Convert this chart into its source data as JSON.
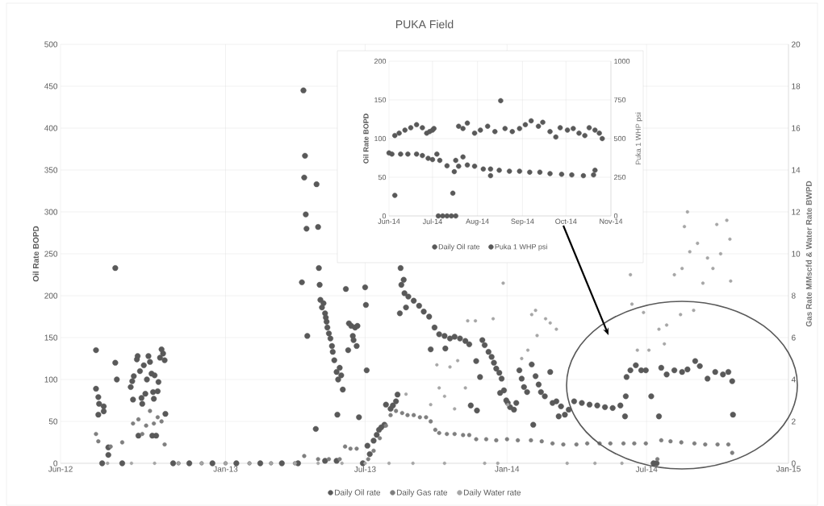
{
  "chart_data": [
    {
      "type": "scatter",
      "title": "PUKA Field",
      "ylabel": "Oil Rate BOPD",
      "y2label": "Gas Rate MMscfd & Water Rate BWPD",
      "xlim": [
        "2012-06-01",
        "2015-01-01"
      ],
      "xticks": [
        {
          "value": "2012-06-01",
          "label": "Jun-12"
        },
        {
          "value": "2013-01-01",
          "label": "Jan-13"
        },
        {
          "value": "2013-07-01",
          "label": "Jul-13"
        },
        {
          "value": "2014-01-01",
          "label": "Jan-14"
        },
        {
          "value": "2014-07-01",
          "label": "Jul-14"
        },
        {
          "value": "2015-01-01",
          "label": "Jan-15"
        }
      ],
      "ylim": [
        0,
        500
      ],
      "yticks": [
        0,
        50,
        100,
        150,
        200,
        250,
        300,
        350,
        400,
        450,
        500
      ],
      "y2lim": [
        0,
        20
      ],
      "y2ticks": [
        0,
        2,
        4,
        6,
        8,
        10,
        12,
        14,
        16,
        18,
        20
      ],
      "grid": true,
      "legend": "bottom",
      "marker": "circle",
      "series": [
        {
          "name": "Daily Oil rate",
          "color": "#595959",
          "x": [
            "2012-07-17",
            "2012-07-17",
            "2012-07-20",
            "2012-07-20",
            "2012-07-21",
            "2012-07-27",
            "2012-07-27",
            "2012-08-02",
            "2012-08-02",
            "2012-08-11",
            "2012-08-11",
            "2012-08-13",
            "2012-08-31",
            "2012-09-02",
            "2012-09-03",
            "2012-09-04",
            "2012-09-08",
            "2012-09-09",
            "2012-09-10",
            "2012-09-12",
            "2012-09-14",
            "2012-09-15",
            "2012-09-17",
            "2012-09-19",
            "2012-09-21",
            "2012-09-23",
            "2012-09-25",
            "2012-09-27",
            "2012-09-28",
            "2012-09-29",
            "2012-09-30",
            "2012-10-01",
            "2012-10-03",
            "2012-10-05",
            "2012-10-06",
            "2012-10-08",
            "2012-10-10",
            "2012-10-12",
            "2012-10-14",
            "2012-10-15",
            "2012-07-25",
            "2012-08-20",
            "2012-10-25",
            "2012-11-15",
            "2012-12-15",
            "2013-01-15",
            "2013-02-15",
            "2013-03-15",
            "2013-04-05",
            "2013-04-10",
            "2013-04-12",
            "2013-04-13",
            "2013-04-14",
            "2013-04-15",
            "2013-04-16",
            "2013-04-17",
            "2013-04-28",
            "2013-04-29",
            "2013-05-01",
            "2013-05-02",
            "2013-05-03",
            "2013-05-04",
            "2013-05-06",
            "2013-05-08",
            "2013-05-10",
            "2013-05-11",
            "2013-05-12",
            "2013-05-13",
            "2013-05-15",
            "2013-05-17",
            "2013-05-19",
            "2013-05-20",
            "2013-05-22",
            "2013-05-25",
            "2013-05-26",
            "2013-05-27",
            "2013-05-29",
            "2013-05-31",
            "2013-06-02",
            "2013-06-06",
            "2013-06-09",
            "2013-06-10",
            "2013-06-13",
            "2013-06-15",
            "2013-06-16",
            "2013-06-18",
            "2013-06-20",
            "2013-06-21",
            "2013-06-23",
            "2013-05-10",
            "2013-05-25",
            "2013-06-28",
            "2013-07-01",
            "2013-07-02",
            "2013-07-03",
            "2013-07-04",
            "2013-07-07",
            "2013-07-12",
            "2013-07-16",
            "2013-07-19",
            "2013-07-22",
            "2013-07-26",
            "2013-07-28",
            "2013-08-03",
            "2013-08-06",
            "2013-08-10",
            "2013-08-12",
            "2013-08-15",
            "2013-08-16",
            "2013-08-17",
            "2013-08-20",
            "2013-08-21",
            "2013-08-23",
            "2013-08-26",
            "2013-09-02",
            "2013-09-09",
            "2013-09-15",
            "2013-09-22",
            "2013-09-24",
            "2013-09-29",
            "2013-10-05",
            "2013-10-12",
            "2013-10-13",
            "2013-10-19",
            "2013-10-25",
            "2013-11-01",
            "2013-11-08",
            "2013-11-13",
            "2013-11-15",
            "2013-11-22",
            "2013-11-23",
            "2013-11-27",
            "2013-11-30",
            "2013-12-03",
            "2013-12-08",
            "2013-12-12",
            "2013-12-15",
            "2013-12-18",
            "2013-12-22",
            "2013-12-23",
            "2013-12-25",
            "2013-12-28",
            "2013-12-31",
            "2014-01-02",
            "2014-01-05",
            "2014-01-10",
            "2014-01-13",
            "2014-01-17",
            "2014-01-20",
            "2014-01-23",
            "2014-01-27",
            "2014-02-02",
            "2014-02-04",
            "2014-02-07",
            "2014-02-11",
            "2014-02-14",
            "2014-02-19",
            "2014-02-26",
            "2014-03-01",
            "2014-03-06",
            "2014-03-09",
            "2014-03-12",
            "2014-03-17",
            "2014-03-22",
            "2014-03-29",
            "2014-04-08",
            "2014-04-18",
            "2014-04-28",
            "2014-05-08",
            "2014-05-18",
            "2014-05-28",
            "2014-06-03",
            "2014-06-04",
            "2014-06-05",
            "2014-06-10",
            "2014-06-17",
            "2014-06-24",
            "2014-06-30",
            "2014-07-07",
            "2014-07-10",
            "2014-07-14",
            "2014-07-17",
            "2014-07-20",
            "2014-07-27",
            "2014-08-06",
            "2014-08-16",
            "2014-08-23",
            "2014-09-02",
            "2014-09-08",
            "2014-09-18",
            "2014-09-28",
            "2014-10-08",
            "2014-10-15",
            "2014-10-20",
            "2014-10-21"
          ],
          "values": [
            135,
            89,
            79,
            58,
            71,
            68,
            62,
            19,
            10,
            233,
            120,
            100,
            91,
            98,
            76,
            104,
            124,
            128,
            33,
            110,
            78,
            71,
            117,
            83,
            100,
            128,
            121,
            107,
            33,
            85,
            77,
            105,
            33,
            86,
            97,
            126,
            136,
            131,
            123,
            59,
            0,
            0,
            0,
            0,
            0,
            0,
            0,
            0,
            0,
            216,
            445,
            341,
            367,
            297,
            280,
            152,
            41,
            333,
            282,
            233,
            213,
            195,
            186,
            191,
            179,
            174,
            169,
            162,
            155,
            149,
            140,
            133,
            123,
            109,
            58,
            100,
            114,
            105,
            88,
            208,
            135,
            167,
            164,
            152,
            147,
            162,
            140,
            164,
            55,
            3,
            3,
            0,
            210,
            189,
            111,
            21,
            11,
            27,
            34,
            40,
            43,
            46,
            70,
            65,
            69,
            74,
            82,
            179,
            233,
            213,
            219,
            203,
            186,
            199,
            194,
            188,
            181,
            175,
            136,
            162,
            154,
            152,
            137,
            149,
            151,
            149,
            146,
            142,
            69,
            122,
            63,
            103,
            147,
            141,
            133,
            127,
            120,
            113,
            108,
            84,
            101,
            87,
            75,
            72,
            67,
            64,
            72,
            111,
            101,
            91,
            85,
            118,
            46,
            104,
            94,
            85,
            80,
            109,
            72,
            74,
            56,
            68,
            58,
            64,
            74,
            72,
            70,
            69,
            67,
            66,
            69,
            56,
            80,
            103,
            111,
            117,
            111,
            111,
            80,
            0,
            0,
            56,
            114,
            106,
            111,
            109,
            112,
            122,
            116,
            101,
            109,
            106,
            109,
            98,
            58
          ]
        },
        {
          "name": "Daily Gas rate",
          "color": "#7f7f7f",
          "axis": "y2",
          "x": [
            "2012-07-17",
            "2012-07-20",
            "2012-08-05",
            "2012-08-20",
            "2012-09-03",
            "2012-09-10",
            "2012-09-15",
            "2012-09-20",
            "2012-09-25",
            "2012-09-30",
            "2012-10-05",
            "2012-10-10",
            "2012-10-14",
            "2012-11-01",
            "2012-12-01",
            "2013-01-01",
            "2013-02-01",
            "2013-03-01",
            "2013-04-01",
            "2013-04-13",
            "2013-05-01",
            "2013-05-15",
            "2013-05-29",
            "2013-06-05",
            "2013-06-12",
            "2013-06-20",
            "2013-07-05",
            "2013-07-12",
            "2013-07-20",
            "2013-07-28",
            "2013-08-03",
            "2013-08-10",
            "2013-08-18",
            "2013-08-25",
            "2013-09-02",
            "2013-09-10",
            "2013-09-18",
            "2013-09-24",
            "2013-09-30",
            "2013-10-05",
            "2013-10-15",
            "2013-10-25",
            "2013-11-05",
            "2013-11-13",
            "2013-11-22",
            "2013-12-05",
            "2013-12-18",
            "2014-01-01",
            "2014-01-15",
            "2014-02-01",
            "2014-02-15",
            "2014-03-01",
            "2014-03-15",
            "2014-04-01",
            "2014-04-15",
            "2014-05-01",
            "2014-05-15",
            "2014-06-01",
            "2014-06-15",
            "2014-06-30",
            "2014-07-15",
            "2014-07-20",
            "2014-08-01",
            "2014-08-15",
            "2014-09-01",
            "2014-09-15",
            "2014-10-01",
            "2014-10-15",
            "2014-10-20"
          ],
          "values": [
            1.4,
            1.05,
            0.8,
            1.0,
            1.9,
            2.1,
            1.4,
            1.8,
            2.5,
            1.9,
            2.2,
            2.0,
            0.9,
            0,
            0,
            0,
            0,
            0,
            0,
            0.35,
            0.2,
            0.2,
            0.2,
            0.8,
            0.7,
            0.7,
            0.2,
            0.6,
            1.2,
            1.8,
            2.3,
            2.5,
            2.4,
            2.3,
            2.3,
            2.2,
            2.2,
            2.0,
            1.6,
            1.45,
            1.4,
            1.4,
            1.35,
            1.35,
            1.15,
            1.15,
            1.1,
            1.15,
            1.1,
            1.1,
            1.05,
            0.95,
            0.9,
            0.9,
            0.95,
            0.95,
            0.95,
            0.95,
            0.95,
            0.95,
            0.2,
            1.1,
            1.05,
            1.0,
            0.95,
            0.9,
            0.9,
            0.9,
            0.5
          ]
        },
        {
          "name": "Daily Water rate",
          "color": "#a6a6a6",
          "axis": "y2",
          "x": [
            "2012-08-01",
            "2012-09-01",
            "2012-10-01",
            "2012-11-01",
            "2012-12-01",
            "2013-01-01",
            "2013-02-01",
            "2013-03-01",
            "2013-04-01",
            "2013-05-01",
            "2013-06-01",
            "2013-07-01",
            "2013-08-01",
            "2013-09-01",
            "2013-08-23",
            "2013-09-24",
            "2013-10-02",
            "2013-10-05",
            "2013-10-12",
            "2013-10-19",
            "2013-10-25",
            "2013-10-29",
            "2013-11-08",
            "2013-11-11",
            "2013-11-21",
            "2013-12-14",
            "2013-12-27",
            "2013-10-12",
            "2013-12-03",
            "2013-12-20",
            "2014-01-02",
            "2014-01-20",
            "2014-01-28",
            "2014-02-02",
            "2014-02-07",
            "2014-02-09",
            "2014-02-20",
            "2014-02-26",
            "2014-03-06",
            "2014-03-20",
            "2014-04-25",
            "2014-05-30",
            "2014-06-10",
            "2014-06-12",
            "2014-06-19",
            "2014-06-27",
            "2014-07-04",
            "2014-07-17",
            "2014-07-24",
            "2014-07-27",
            "2014-08-06",
            "2014-08-14",
            "2014-08-16",
            "2014-08-19",
            "2014-08-23",
            "2014-08-26",
            "2014-08-31",
            "2014-09-05",
            "2014-09-12",
            "2014-09-18",
            "2014-09-25",
            "2014-09-30",
            "2014-10-05",
            "2014-10-13",
            "2014-10-17",
            "2014-10-18"
          ],
          "values": [
            0,
            0,
            0,
            0,
            0,
            0,
            0,
            0,
            0,
            0,
            0,
            0,
            0,
            0,
            3.3,
            2.8,
            4.7,
            3.6,
            3.2,
            4.6,
            2.6,
            4.9,
            3.6,
            6.8,
            6.8,
            6.9,
            8.6,
            0,
            0,
            0,
            2.8,
            5.0,
            5.4,
            7.1,
            7.3,
            6.1,
            6.9,
            6.7,
            6.4,
            0,
            0,
            0,
            9.0,
            7.6,
            5.4,
            7.2,
            5.4,
            6.4,
            5.7,
            6.6,
            9.0,
            7.1,
            9.3,
            11.3,
            12.0,
            10.1,
            7.3,
            10.5,
            8.6,
            9.8,
            9.3,
            11.4,
            10.0,
            11.6,
            10.7,
            8.7
          ]
        }
      ]
    },
    {
      "type": "scatter",
      "ylabel": "Oil Rate BOPD",
      "y2label": "Puka 1 WHP psi",
      "xlim": [
        "2014-06-01",
        "2014-11-01"
      ],
      "xticks": [
        {
          "value": "2014-06-01",
          "label": "Jun-14"
        },
        {
          "value": "2014-07-01",
          "label": "Jul-14"
        },
        {
          "value": "2014-08-01",
          "label": "Aug-14"
        },
        {
          "value": "2014-09-01",
          "label": "Sep-14"
        },
        {
          "value": "2014-10-01",
          "label": "Oct-14"
        },
        {
          "value": "2014-11-01",
          "label": "Nov-14"
        }
      ],
      "ylim": [
        0,
        200
      ],
      "yticks": [
        0,
        50,
        100,
        150,
        200
      ],
      "y2lim": [
        0,
        1000
      ],
      "y2ticks": [
        0,
        250,
        500,
        750,
        1000
      ],
      "grid": true,
      "legend": "bottom",
      "marker": "circle",
      "series": [
        {
          "name": "Daily Oil rate",
          "color": "#595959",
          "x": [
            "2014-06-05",
            "2014-06-08",
            "2014-06-12",
            "2014-06-16",
            "2014-06-20",
            "2014-06-24",
            "2014-06-27",
            "2014-06-29",
            "2014-07-01",
            "2014-07-02",
            "2014-07-05",
            "2014-07-08",
            "2014-07-11",
            "2014-07-14",
            "2014-07-17",
            "2014-07-19",
            "2014-07-22",
            "2014-07-25",
            "2014-07-30",
            "2014-08-03",
            "2014-08-08",
            "2014-08-13",
            "2014-08-17",
            "2014-08-20",
            "2014-08-25",
            "2014-08-30",
            "2014-09-03",
            "2014-09-07",
            "2014-09-12",
            "2014-09-15",
            "2014-09-20",
            "2014-09-24",
            "2014-09-27",
            "2014-10-02",
            "2014-10-06",
            "2014-10-10",
            "2014-10-14",
            "2014-10-17",
            "2014-10-21",
            "2014-10-24",
            "2014-10-26"
          ],
          "values": [
            104,
            107,
            111,
            114,
            118,
            114,
            107,
            109,
            111,
            113,
            0,
            0,
            0,
            0,
            0,
            116,
            113,
            120,
            107,
            111,
            116,
            109,
            149,
            113,
            109,
            113,
            118,
            123,
            116,
            121,
            109,
            102,
            114,
            111,
            113,
            107,
            104,
            114,
            111,
            107,
            100
          ]
        },
        {
          "name": "Puka 1 WHP psi",
          "color": "#595959",
          "axis": "y2",
          "x": [
            "2014-06-01",
            "2014-06-03",
            "2014-06-05",
            "2014-06-09",
            "2014-06-14",
            "2014-06-20",
            "2014-06-24",
            "2014-06-28",
            "2014-07-01",
            "2014-07-04",
            "2014-07-06",
            "2014-07-11",
            "2014-07-15",
            "2014-07-16",
            "2014-07-17",
            "2014-07-19",
            "2014-07-22",
            "2014-07-25",
            "2014-07-30",
            "2014-08-05",
            "2014-08-10",
            "2014-08-10",
            "2014-08-16",
            "2014-08-23",
            "2014-08-30",
            "2014-09-06",
            "2014-09-13",
            "2014-09-20",
            "2014-09-28",
            "2014-10-05",
            "2014-10-13",
            "2014-10-20",
            "2014-10-21"
          ],
          "values": [
            407,
            400,
            133,
            400,
            400,
            400,
            390,
            373,
            364,
            400,
            359,
            324,
            147,
            286,
            359,
            321,
            381,
            329,
            321,
            303,
            260,
            303,
            295,
            289,
            289,
            283,
            283,
            274,
            269,
            265,
            260,
            265,
            295
          ]
        }
      ]
    }
  ]
}
